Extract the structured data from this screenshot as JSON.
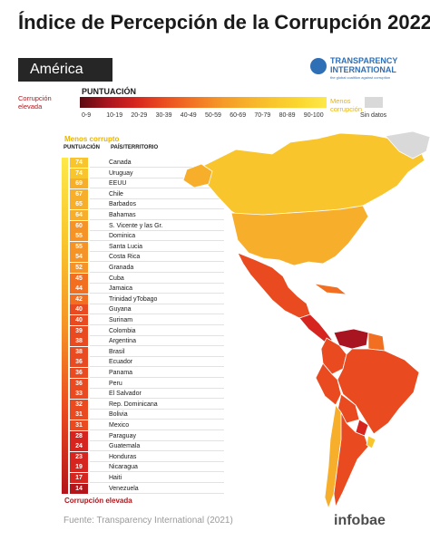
{
  "title": "Índice de Percepción de la Corrupción 2022",
  "region": "América",
  "brand_logo": {
    "name": "TRANSPARENCY INTERNATIONAL",
    "tagline": "the global coalition against corruption",
    "color": "#2f6fb5"
  },
  "legend": {
    "title": "PUNTUACIÓN",
    "left_label_line1": "Corrupción",
    "left_label_line2": "elevada",
    "right_label_line1": "Menos",
    "right_label_line2": "corrupción",
    "ticks": [
      "0-9",
      "10-19",
      "20-29",
      "30-39",
      "40-49",
      "50-59",
      "60-69",
      "70-79",
      "80-89",
      "90-100"
    ],
    "no_data_label": "Sin datos",
    "colors": [
      "#5c0a12",
      "#a8141f",
      "#d6241f",
      "#ea4a1f",
      "#f26f22",
      "#f59327",
      "#f7ae2a",
      "#f9c52d",
      "#fbd72f",
      "#fde84a"
    ],
    "no_data_color": "#d9d9d9"
  },
  "table": {
    "top_label": "Menos corrupto",
    "score_header": "PUNTUACIÓN",
    "country_header": "PAÍS/TERRITORIO",
    "bottom_label": "Corrupción elevada",
    "rows": [
      {
        "score": "74",
        "country": "Canada"
      },
      {
        "score": "74",
        "country": "Uruguay"
      },
      {
        "score": "69",
        "country": "EEUU"
      },
      {
        "score": "67",
        "country": "Chile"
      },
      {
        "score": "65",
        "country": "Barbados"
      },
      {
        "score": "64",
        "country": "Bahamas"
      },
      {
        "score": "60",
        "country": "S. Vicente y las Gr."
      },
      {
        "score": "55",
        "country": "Dominica"
      },
      {
        "score": "55",
        "country": "Santa Lucia"
      },
      {
        "score": "54",
        "country": "Costa Rica"
      },
      {
        "score": "52",
        "country": "Granada"
      },
      {
        "score": "45",
        "country": "Cuba"
      },
      {
        "score": "44",
        "country": "Jamaica"
      },
      {
        "score": "42",
        "country": "Trinidad yTobago"
      },
      {
        "score": "40",
        "country": "Guyana"
      },
      {
        "score": "40",
        "country": "Surinam"
      },
      {
        "score": "39",
        "country": "Colombia"
      },
      {
        "score": "38",
        "country": "Argentina"
      },
      {
        "score": "38",
        "country": "Brasil"
      },
      {
        "score": "36",
        "country": "Ecuador"
      },
      {
        "score": "36",
        "country": "Panama"
      },
      {
        "score": "36",
        "country": "Peru"
      },
      {
        "score": "33",
        "country": "El Salvador"
      },
      {
        "score": "32",
        "country": "Rep. Dominicana"
      },
      {
        "score": "31",
        "country": "Bolivia"
      },
      {
        "score": "31",
        "country": "Mexico"
      },
      {
        "score": "28",
        "country": "Paraguay"
      },
      {
        "score": "24",
        "country": "Guatemala"
      },
      {
        "score": "23",
        "country": "Honduras"
      },
      {
        "score": "19",
        "country": "Nicaragua"
      },
      {
        "score": "17",
        "country": "Haiti"
      },
      {
        "score": "14",
        "country": "Venezuela"
      }
    ]
  },
  "source": "Fuente: Transparency International (2021)",
  "brand": "infobae"
}
